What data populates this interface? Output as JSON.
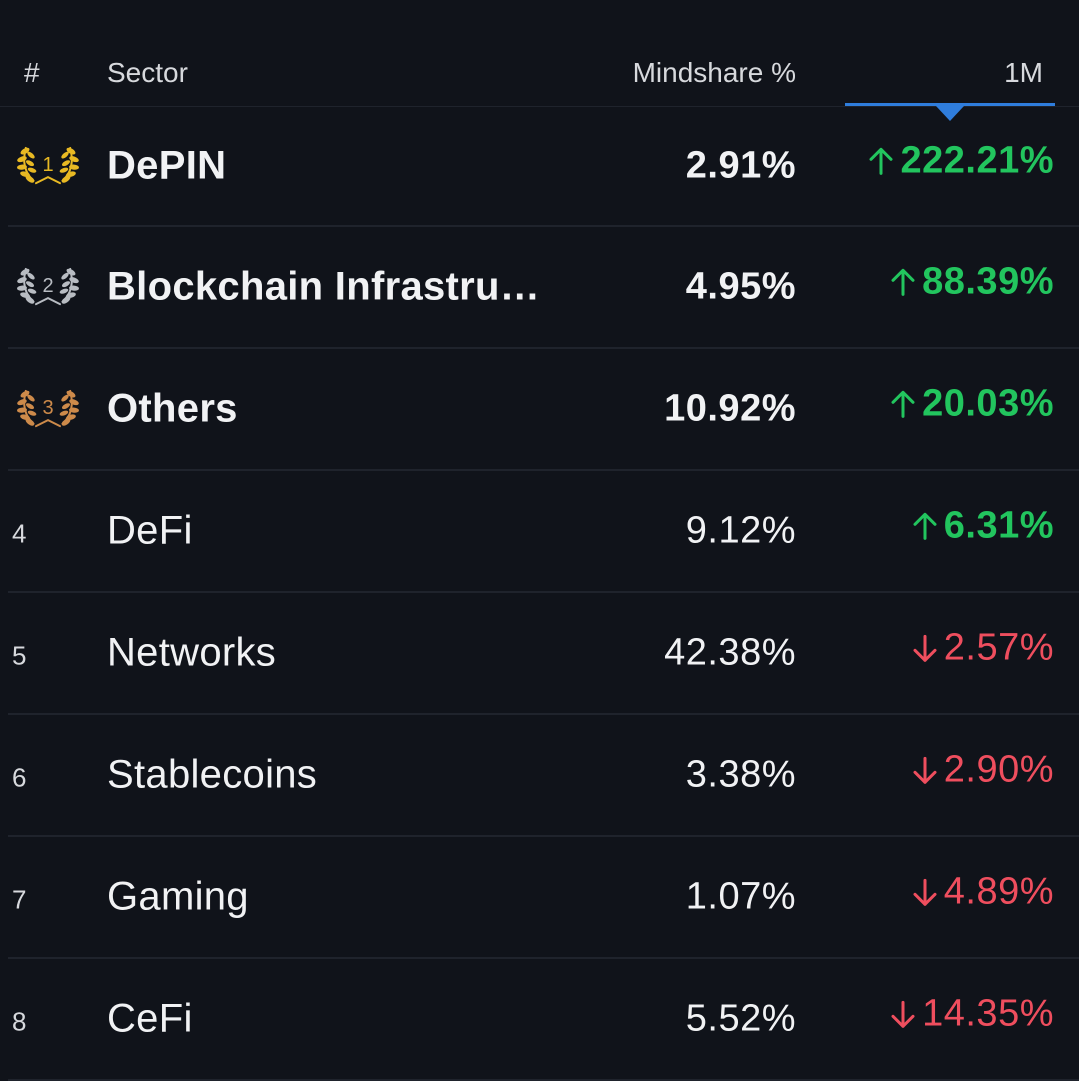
{
  "header": {
    "rank_label": "#",
    "sector_label": "Sector",
    "mindshare_label": "Mindshare %",
    "period_label": "1M"
  },
  "colors": {
    "background": "#10131a",
    "up": "#22c55e",
    "down": "#ef4e5e",
    "accent": "#2f7ddc",
    "gold": "#e8b923",
    "silver": "#b8bcc2",
    "bronze": "#cd8a4a"
  },
  "rows": [
    {
      "rank": "1",
      "sector": "DePIN",
      "mindshare": "2.91%",
      "change": "222.21%",
      "direction": "up",
      "medal": "gold-laurel-icon"
    },
    {
      "rank": "2",
      "sector": "Blockchain Infrastructure",
      "mindshare": "4.95%",
      "change": "88.39%",
      "direction": "up",
      "medal": "silver-laurel-icon"
    },
    {
      "rank": "3",
      "sector": "Others",
      "mindshare": "10.92%",
      "change": "20.03%",
      "direction": "up",
      "medal": "bronze-laurel-icon"
    },
    {
      "rank": "4",
      "sector": "DeFi",
      "mindshare": "9.12%",
      "change": "6.31%",
      "direction": "up"
    },
    {
      "rank": "5",
      "sector": "Networks",
      "mindshare": "42.38%",
      "change": "2.57%",
      "direction": "down"
    },
    {
      "rank": "6",
      "sector": "Stablecoins",
      "mindshare": "3.38%",
      "change": "2.90%",
      "direction": "down"
    },
    {
      "rank": "7",
      "sector": "Gaming",
      "mindshare": "1.07%",
      "change": "4.89%",
      "direction": "down"
    },
    {
      "rank": "8",
      "sector": "CeFi",
      "mindshare": "5.52%",
      "change": "14.35%",
      "direction": "down"
    }
  ]
}
